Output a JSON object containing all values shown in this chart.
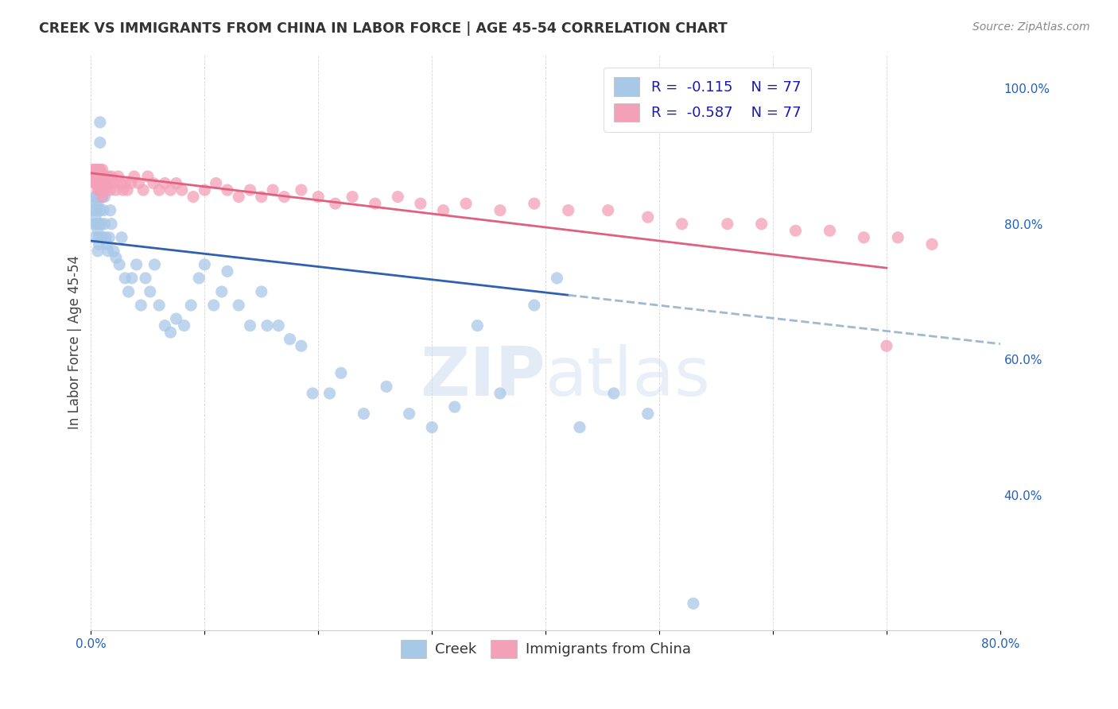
{
  "title": "CREEK VS IMMIGRANTS FROM CHINA IN LABOR FORCE | AGE 45-54 CORRELATION CHART",
  "source_text": "Source: ZipAtlas.com",
  "ylabel": "In Labor Force | Age 45-54",
  "xlim": [
    0.0,
    0.8
  ],
  "ylim": [
    0.2,
    1.05
  ],
  "x_ticks": [
    0.0,
    0.1,
    0.2,
    0.3,
    0.4,
    0.5,
    0.6,
    0.7,
    0.8
  ],
  "x_tick_labels": [
    "0.0%",
    "",
    "",
    "",
    "",
    "",
    "",
    "",
    "80.0%"
  ],
  "y_ticks_right": [
    0.4,
    0.6,
    0.8,
    1.0
  ],
  "y_tick_labels_right": [
    "40.0%",
    "60.0%",
    "80.0%",
    "100.0%"
  ],
  "legend_r_creek": "-0.115",
  "legend_n_creek": "77",
  "legend_r_china": "-0.587",
  "legend_n_china": "77",
  "creek_color": "#a8c8e8",
  "china_color": "#f4a0b8",
  "trendline_creek_color": "#3060b0",
  "trendline_china_color": "#e06080",
  "trendline_creek_dashed_color": "#a0b8d0",
  "watermark_zip": "ZIP",
  "watermark_atlas": "atlas",
  "creek_x": [
    0.002,
    0.003,
    0.003,
    0.004,
    0.004,
    0.004,
    0.005,
    0.005,
    0.005,
    0.006,
    0.006,
    0.006,
    0.007,
    0.007,
    0.007,
    0.007,
    0.008,
    0.008,
    0.008,
    0.009,
    0.01,
    0.01,
    0.011,
    0.012,
    0.012,
    0.013,
    0.014,
    0.015,
    0.016,
    0.017,
    0.018,
    0.02,
    0.022,
    0.025,
    0.027,
    0.03,
    0.033,
    0.036,
    0.04,
    0.044,
    0.048,
    0.052,
    0.056,
    0.06,
    0.065,
    0.07,
    0.075,
    0.082,
    0.088,
    0.095,
    0.1,
    0.108,
    0.115,
    0.12,
    0.13,
    0.14,
    0.15,
    0.155,
    0.165,
    0.175,
    0.185,
    0.195,
    0.21,
    0.22,
    0.24,
    0.26,
    0.28,
    0.3,
    0.32,
    0.34,
    0.36,
    0.39,
    0.41,
    0.43,
    0.46,
    0.49,
    0.53
  ],
  "creek_y": [
    0.82,
    0.84,
    0.8,
    0.81,
    0.83,
    0.78,
    0.84,
    0.8,
    0.82,
    0.79,
    0.83,
    0.76,
    0.84,
    0.8,
    0.78,
    0.77,
    0.95,
    0.92,
    0.82,
    0.8,
    0.84,
    0.78,
    0.82,
    0.84,
    0.8,
    0.78,
    0.77,
    0.76,
    0.78,
    0.82,
    0.8,
    0.76,
    0.75,
    0.74,
    0.78,
    0.72,
    0.7,
    0.72,
    0.74,
    0.68,
    0.72,
    0.7,
    0.74,
    0.68,
    0.65,
    0.64,
    0.66,
    0.65,
    0.68,
    0.72,
    0.74,
    0.68,
    0.7,
    0.73,
    0.68,
    0.65,
    0.7,
    0.65,
    0.65,
    0.63,
    0.62,
    0.55,
    0.55,
    0.58,
    0.52,
    0.56,
    0.52,
    0.5,
    0.53,
    0.65,
    0.55,
    0.68,
    0.72,
    0.5,
    0.55,
    0.52,
    0.24
  ],
  "china_x": [
    0.001,
    0.002,
    0.003,
    0.003,
    0.004,
    0.004,
    0.005,
    0.005,
    0.006,
    0.006,
    0.007,
    0.007,
    0.008,
    0.008,
    0.009,
    0.009,
    0.01,
    0.01,
    0.011,
    0.011,
    0.012,
    0.013,
    0.014,
    0.015,
    0.016,
    0.017,
    0.018,
    0.02,
    0.022,
    0.024,
    0.026,
    0.028,
    0.03,
    0.032,
    0.035,
    0.038,
    0.042,
    0.046,
    0.05,
    0.055,
    0.06,
    0.065,
    0.07,
    0.075,
    0.08,
    0.09,
    0.1,
    0.11,
    0.12,
    0.13,
    0.14,
    0.15,
    0.16,
    0.17,
    0.185,
    0.2,
    0.215,
    0.23,
    0.25,
    0.27,
    0.29,
    0.31,
    0.33,
    0.36,
    0.39,
    0.42,
    0.455,
    0.49,
    0.52,
    0.56,
    0.59,
    0.62,
    0.65,
    0.68,
    0.71,
    0.74,
    0.7
  ],
  "china_y": [
    0.88,
    0.87,
    0.88,
    0.86,
    0.87,
    0.86,
    0.88,
    0.86,
    0.87,
    0.85,
    0.88,
    0.85,
    0.86,
    0.88,
    0.87,
    0.85,
    0.88,
    0.84,
    0.86,
    0.85,
    0.87,
    0.86,
    0.85,
    0.87,
    0.86,
    0.85,
    0.87,
    0.86,
    0.85,
    0.87,
    0.86,
    0.85,
    0.86,
    0.85,
    0.86,
    0.87,
    0.86,
    0.85,
    0.87,
    0.86,
    0.85,
    0.86,
    0.85,
    0.86,
    0.85,
    0.84,
    0.85,
    0.86,
    0.85,
    0.84,
    0.85,
    0.84,
    0.85,
    0.84,
    0.85,
    0.84,
    0.83,
    0.84,
    0.83,
    0.84,
    0.83,
    0.82,
    0.83,
    0.82,
    0.83,
    0.82,
    0.82,
    0.81,
    0.8,
    0.8,
    0.8,
    0.79,
    0.79,
    0.78,
    0.78,
    0.77,
    0.62
  ],
  "creek_trendline_x0": 0.0,
  "creek_trendline_y0": 0.775,
  "creek_trendline_x1": 0.42,
  "creek_trendline_y1": 0.695,
  "creek_trendline_x2": 0.8,
  "creek_trendline_y2": 0.623,
  "china_trendline_x0": 0.0,
  "china_trendline_y0": 0.875,
  "china_trendline_x1": 0.7,
  "china_trendline_y1": 0.735
}
